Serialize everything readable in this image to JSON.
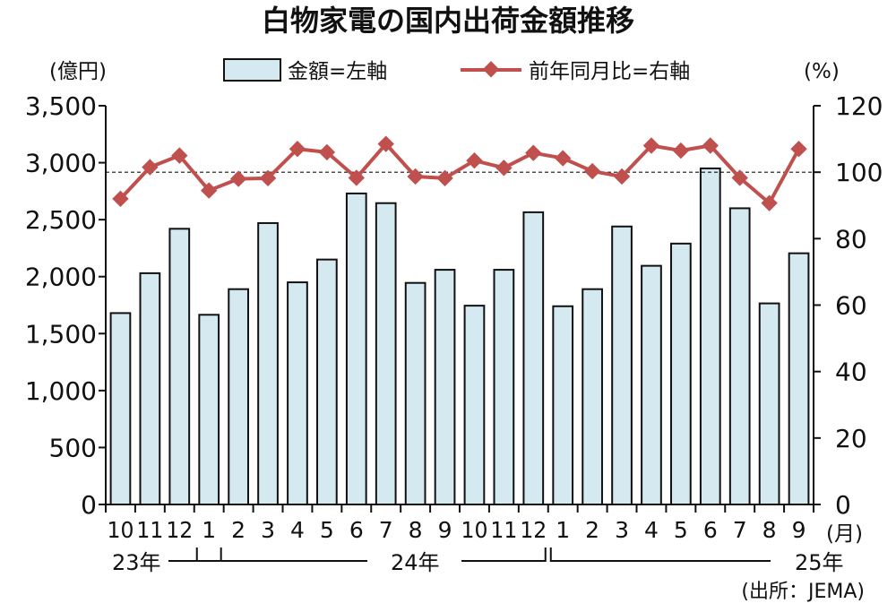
{
  "chart_data": {
    "type": "bar+line",
    "title": "白物家電の国内出荷金額推移",
    "y_left_unit": "(億円)",
    "y_right_unit": "(%)",
    "x_unit": "(月)",
    "source": "(出所：JEMA)",
    "legend": {
      "bar_label": "金額=左軸",
      "line_label": "前年同月比=右軸",
      "placement": "top"
    },
    "y_left": {
      "min": 0,
      "max": 3500,
      "ticks": [
        "0",
        "500",
        "1,000",
        "1,500",
        "2,000",
        "2,500",
        "3,000",
        "3,500"
      ]
    },
    "y_right": {
      "min": 0,
      "max": 120,
      "ticks": [
        "0",
        "20",
        "40",
        "60",
        "80",
        "100",
        "120"
      ]
    },
    "reference_line_y_right": 100,
    "categories": [
      "10",
      "11",
      "12",
      "1",
      "2",
      "3",
      "4",
      "5",
      "6",
      "7",
      "8",
      "9",
      "10",
      "11",
      "12",
      "1",
      "2",
      "3",
      "4",
      "5",
      "6",
      "7",
      "8",
      "9"
    ],
    "year_labels": [
      "23年",
      "24年",
      "25年"
    ],
    "series": [
      {
        "name": "金額=左軸",
        "axis": "left",
        "type": "bar",
        "color": "#d4e9f0",
        "values": [
          1680,
          2030,
          2420,
          1665,
          1890,
          2470,
          1950,
          2150,
          2730,
          2645,
          1945,
          2060,
          1745,
          2060,
          2565,
          1740,
          1890,
          2440,
          2095,
          2290,
          2950,
          2600,
          1765,
          2205
        ]
      },
      {
        "name": "前年同月比=右軸",
        "axis": "right",
        "type": "line",
        "color": "#c0504d",
        "values": [
          92,
          101.5,
          105,
          94.5,
          98,
          98.2,
          107,
          106,
          98.3,
          108.5,
          98.7,
          98.2,
          103.5,
          101.3,
          105.8,
          104.2,
          100.3,
          98.7,
          108,
          106.5,
          108,
          98.3,
          90.7,
          107
        ]
      }
    ]
  }
}
